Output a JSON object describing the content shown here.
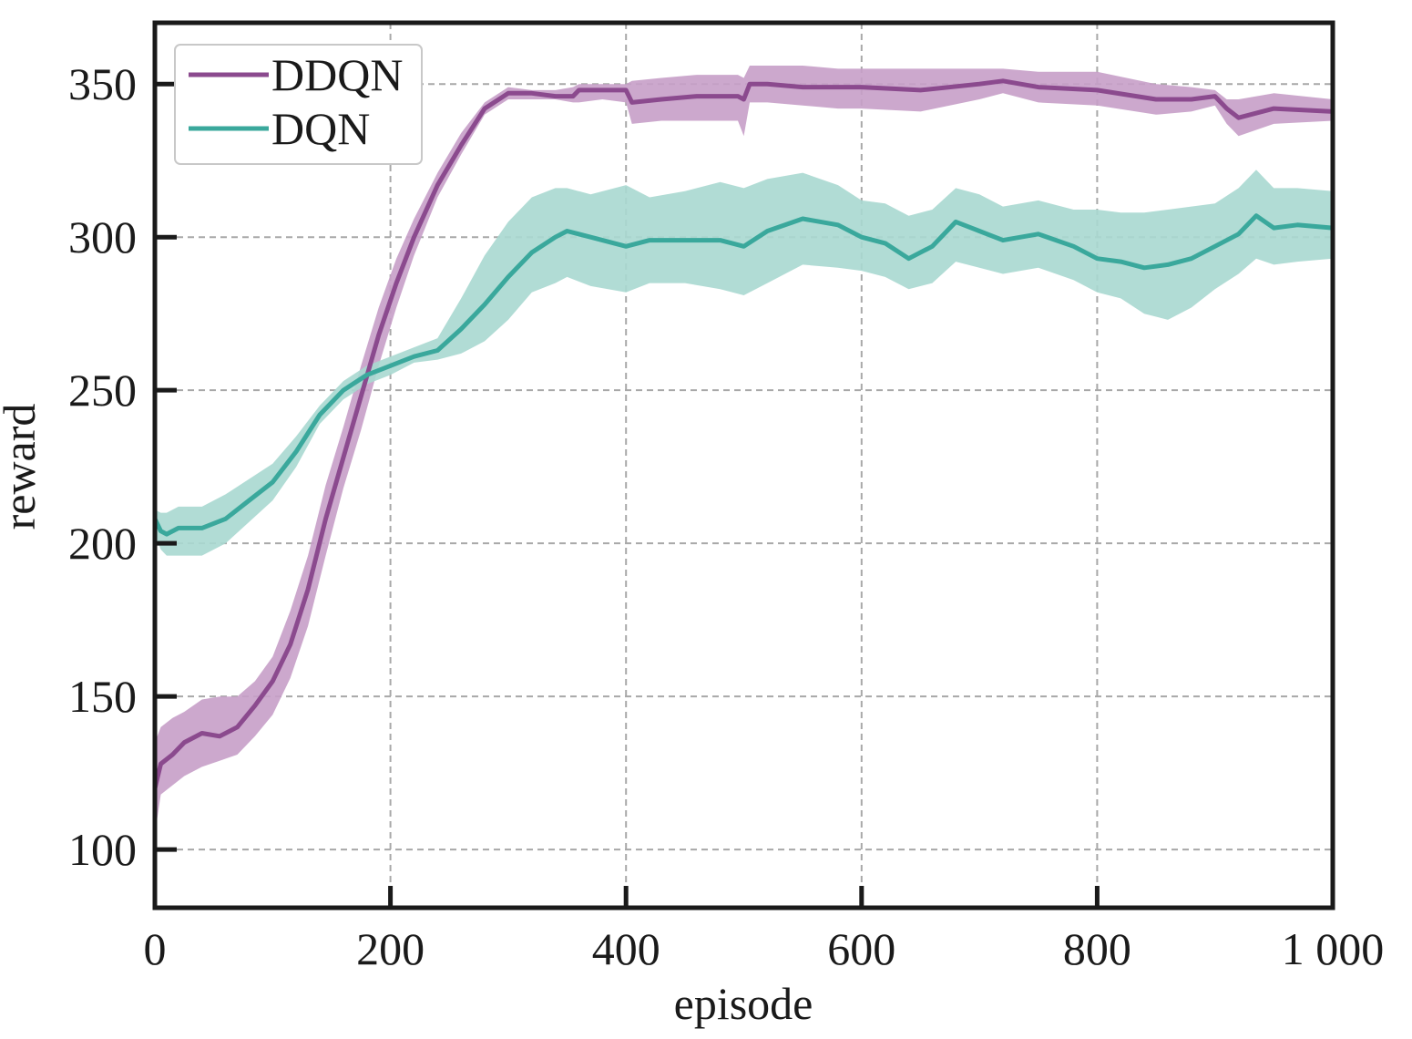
{
  "chart_data": {
    "type": "line",
    "xlabel": "episode",
    "ylabel": "reward",
    "xlim": [
      0,
      1000
    ],
    "ylim": [
      81,
      370
    ],
    "x_ticks": [
      0,
      200,
      400,
      600,
      800,
      1000
    ],
    "x_tick_labels": [
      "0",
      "200",
      "400",
      "600",
      "800",
      "1 000"
    ],
    "y_ticks": [
      100,
      150,
      200,
      250,
      300,
      350
    ],
    "y_tick_labels": [
      "100",
      "150",
      "200",
      "250",
      "300",
      "350"
    ],
    "grid": true,
    "legend": "top-left",
    "series": [
      {
        "name": "DDQN",
        "color": "#8b4a8e",
        "band_color": "#c79fc8",
        "x": [
          0,
          5,
          15,
          25,
          40,
          55,
          70,
          85,
          100,
          115,
          130,
          145,
          160,
          175,
          190,
          205,
          220,
          240,
          260,
          280,
          300,
          320,
          340,
          355,
          360,
          380,
          400,
          405,
          430,
          460,
          495,
          500,
          505,
          520,
          550,
          580,
          600,
          650,
          700,
          720,
          750,
          800,
          850,
          880,
          900,
          910,
          920,
          950,
          1000
        ],
        "mean": [
          120,
          128,
          131,
          135,
          138,
          137,
          140,
          147,
          155,
          167,
          185,
          208,
          228,
          248,
          268,
          285,
          300,
          317,
          330,
          342,
          347,
          347,
          346,
          346,
          348,
          348,
          348,
          344,
          345,
          346,
          346,
          345,
          350,
          350,
          349,
          349,
          349,
          348,
          350,
          351,
          349,
          348,
          345,
          345,
          346,
          342,
          339,
          342,
          341
        ],
        "upper": [
          135,
          140,
          143,
          145,
          149,
          150,
          150,
          155,
          163,
          178,
          196,
          219,
          238,
          258,
          277,
          293,
          306,
          321,
          334,
          344,
          349,
          348,
          348,
          349,
          350,
          350,
          350,
          351,
          352,
          353,
          353,
          352,
          356,
          356,
          356,
          355,
          355,
          355,
          355,
          355,
          354,
          354,
          350,
          349,
          348,
          345,
          345,
          347,
          345
        ],
        "lower": [
          105,
          118,
          121,
          124,
          127,
          129,
          131,
          137,
          144,
          156,
          173,
          196,
          218,
          237,
          258,
          277,
          294,
          313,
          327,
          340,
          345,
          345,
          345,
          344,
          344,
          345,
          344,
          337,
          338,
          338,
          338,
          333,
          344,
          344,
          343,
          342,
          342,
          341,
          345,
          347,
          344,
          343,
          340,
          341,
          343,
          337,
          333,
          337,
          338
        ]
      },
      {
        "name": "DQN",
        "color": "#3aa89c",
        "band_color": "#a9d8d0",
        "x": [
          0,
          5,
          10,
          20,
          40,
          60,
          80,
          100,
          120,
          140,
          160,
          180,
          200,
          220,
          240,
          260,
          280,
          300,
          320,
          340,
          350,
          370,
          400,
          420,
          450,
          480,
          500,
          520,
          550,
          580,
          600,
          620,
          640,
          660,
          680,
          700,
          720,
          750,
          780,
          800,
          820,
          840,
          860,
          880,
          900,
          920,
          935,
          950,
          970,
          1000
        ],
        "mean": [
          208,
          204,
          203,
          205,
          205,
          208,
          214,
          220,
          230,
          242,
          250,
          255,
          258,
          261,
          263,
          270,
          278,
          287,
          295,
          300,
          302,
          300,
          297,
          299,
          299,
          299,
          297,
          302,
          306,
          304,
          300,
          298,
          293,
          297,
          305,
          302,
          299,
          301,
          297,
          293,
          292,
          290,
          291,
          293,
          297,
          301,
          307,
          303,
          304,
          303
        ],
        "upper": [
          211,
          210,
          210,
          212,
          212,
          216,
          221,
          226,
          235,
          245,
          253,
          258,
          261,
          264,
          267,
          280,
          294,
          305,
          313,
          316,
          316,
          314,
          317,
          313,
          315,
          318,
          316,
          319,
          321,
          317,
          312,
          311,
          307,
          309,
          316,
          314,
          310,
          312,
          309,
          309,
          308,
          308,
          309,
          310,
          311,
          316,
          322,
          316,
          316,
          315
        ],
        "lower": [
          203,
          198,
          196,
          196,
          196,
          200,
          207,
          214,
          225,
          239,
          247,
          252,
          255,
          259,
          260,
          262,
          266,
          273,
          282,
          285,
          287,
          284,
          282,
          285,
          285,
          283,
          281,
          285,
          291,
          290,
          289,
          287,
          283,
          285,
          292,
          290,
          288,
          290,
          286,
          282,
          280,
          275,
          273,
          277,
          283,
          288,
          293,
          291,
          292,
          293
        ]
      }
    ]
  }
}
